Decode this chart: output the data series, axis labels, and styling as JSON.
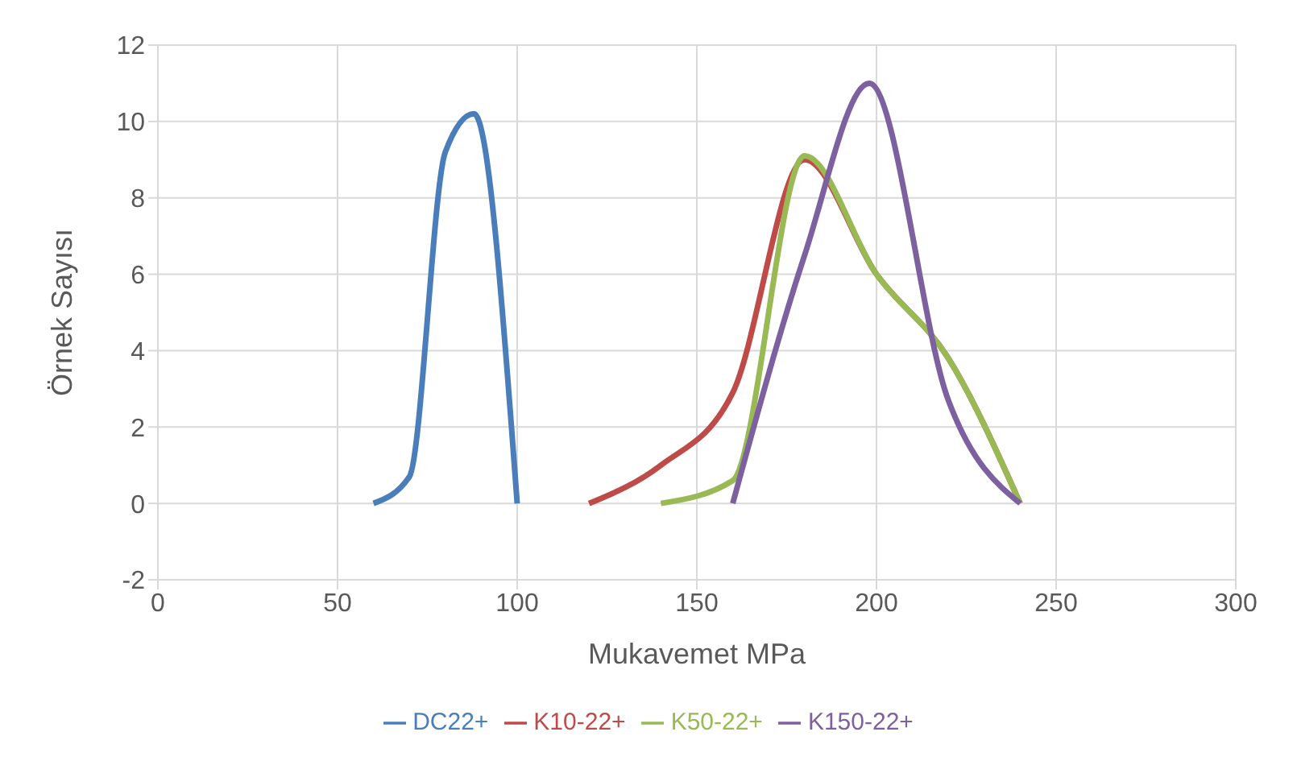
{
  "chart_data": {
    "type": "line",
    "xlabel": "Mukavemet MPa",
    "ylabel": "Örnek Sayısı",
    "xlim": [
      0,
      300
    ],
    "xticks": [
      0,
      50,
      100,
      150,
      200,
      250,
      300
    ],
    "ylim": [
      -2,
      12
    ],
    "yticks": [
      -2,
      0,
      2,
      4,
      6,
      8,
      10,
      12
    ],
    "grid": true,
    "legend": "bottom",
    "marker": "none",
    "line_style": "solid",
    "series": [
      {
        "name": "DC22+",
        "color": "#4a7ebb",
        "x": [
          60,
          70,
          80,
          88,
          100
        ],
        "values": [
          0,
          0.7,
          9.2,
          10.2,
          0
        ]
      },
      {
        "name": "K10-22+",
        "color": "#be4b48",
        "x": [
          120,
          140,
          160,
          180,
          200,
          220,
          240
        ],
        "values": [
          0,
          1,
          2.9,
          9,
          6,
          3.8,
          0
        ]
      },
      {
        "name": "K50-22+",
        "color": "#98b954",
        "x": [
          140,
          160,
          180,
          200,
          220,
          240
        ],
        "values": [
          0,
          0.6,
          9.1,
          6,
          3.8,
          0
        ]
      },
      {
        "name": "K150-22+",
        "color": "#7d60a0",
        "x": [
          160,
          180,
          198,
          220,
          240
        ],
        "values": [
          0,
          6.5,
          11,
          2.7,
          0
        ]
      }
    ]
  }
}
